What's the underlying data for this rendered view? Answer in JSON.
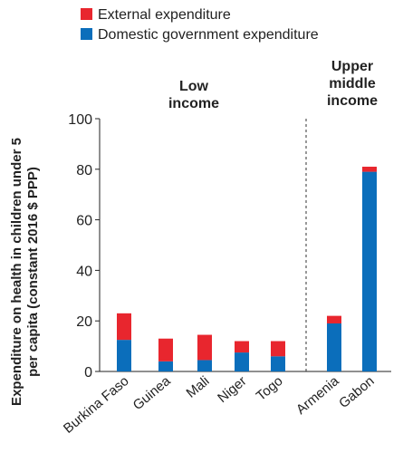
{
  "chart_data": {
    "type": "bar",
    "stacked": true,
    "categories": [
      "Burkina Faso",
      "Guinea",
      "Mali",
      "Niger",
      "Togo",
      "Armenia",
      "Gabon"
    ],
    "series": [
      {
        "name": "Domestic government expenditure",
        "color": "#0b6ebb",
        "values": [
          12.5,
          4,
          4.5,
          7.5,
          6,
          19,
          79
        ]
      },
      {
        "name": "External expenditure",
        "color": "#e8262e",
        "values": [
          10.5,
          9,
          10,
          4.5,
          6,
          3,
          2
        ]
      }
    ],
    "legend": [
      "External expenditure",
      "Domestic government expenditure"
    ],
    "legend_position": "top",
    "ylabel": [
      "Expenditure on health in children under 5",
      "per capita (constant 2016 $ PPP)"
    ],
    "ylim": [
      0,
      100
    ],
    "yticks": [
      0,
      20,
      40,
      60,
      80,
      100
    ],
    "groups": [
      {
        "label": [
          "Low",
          "income"
        ],
        "categories": [
          "Burkina Faso",
          "Guinea",
          "Mali",
          "Niger",
          "Togo"
        ]
      },
      {
        "label": [
          "Upper",
          "middle",
          "income"
        ],
        "categories": [
          "Armenia",
          "Gabon"
        ]
      }
    ],
    "grid": false,
    "group_separator": "dashed"
  }
}
